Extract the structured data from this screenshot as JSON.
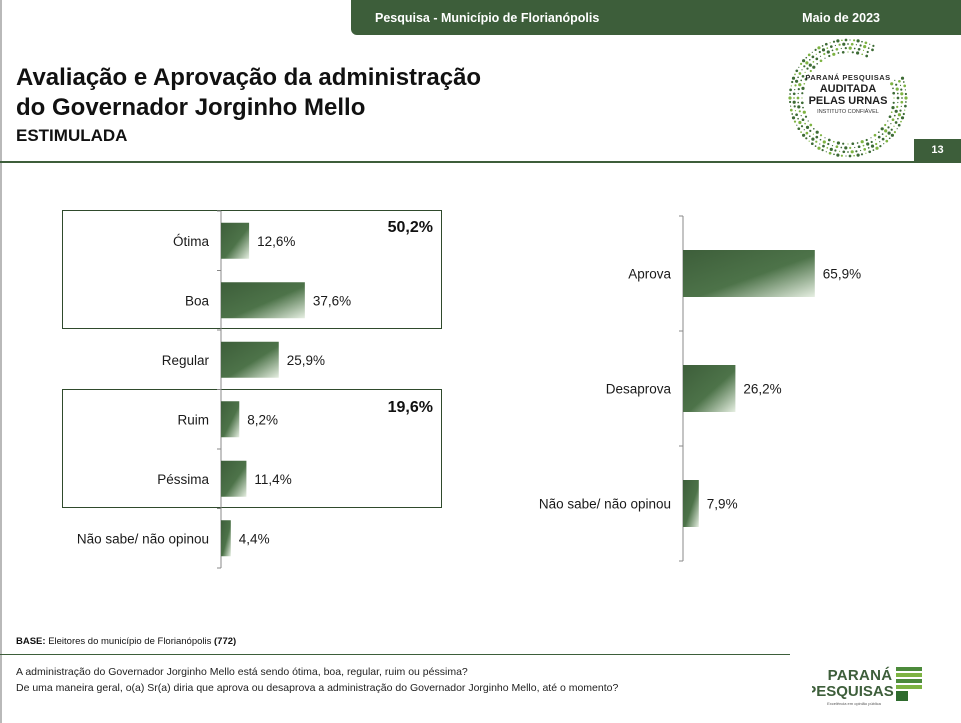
{
  "header": {
    "survey_label": "Pesquisa - Município de Florianópolis",
    "date": "Maio de 2023",
    "page_number": "13"
  },
  "title": {
    "line1": "Avaliação e Aprovação da administração",
    "line2": "do Governador Jorginho Mello",
    "subtitle": "ESTIMULADA"
  },
  "seal": {
    "line1": "PARANÁ PESQUISAS",
    "line2": "AUDITADA",
    "line3": "PELAS URNAS",
    "line4": "INSTITUTO CONFIÁVEL"
  },
  "footer": {
    "base_label": "BASE:",
    "base_text": "Eleitores do município de Florianópolis",
    "base_count": "(772)",
    "question1": "A administração do Governador Jorginho Mello está sendo ótima, boa, regular, ruim ou péssima?",
    "question2": "De uma maneira geral, o(a) Sr(a) diria que aprova ou desaprova a administração do Governador Jorginho Mello, até o momento?"
  },
  "brand": {
    "line1": "PARANÁ",
    "line2": "PESQUISAS",
    "tagline": "Excelência em opinião pública"
  },
  "colors": {
    "brand_green": "#3d5e3a",
    "bar_dark": "#3d5e3a",
    "bar_light": "#e6efe2"
  },
  "chart_data": [
    {
      "type": "bar",
      "orientation": "horizontal",
      "categories": [
        "Ótima",
        "Boa",
        "Regular",
        "Ruim",
        "Péssima",
        "Não sabe/ não opinou"
      ],
      "values": [
        12.6,
        37.6,
        25.9,
        8.2,
        11.4,
        4.4
      ],
      "value_labels": [
        "12,6%",
        "37,6%",
        "25,9%",
        "8,2%",
        "11,4%",
        "4,4%"
      ],
      "groups": [
        {
          "members": [
            "Ótima",
            "Boa"
          ],
          "total_label": "50,2%"
        },
        {
          "members": [
            "Ruim",
            "Péssima"
          ],
          "total_label": "19,6%"
        }
      ],
      "xlim": [
        0,
        100
      ],
      "grid": false,
      "legend": "none"
    },
    {
      "type": "bar",
      "orientation": "horizontal",
      "categories": [
        "Aprova",
        "Desaprova",
        "Não sabe/ não opinou"
      ],
      "values": [
        65.9,
        26.2,
        7.9
      ],
      "value_labels": [
        "65,9%",
        "26,2%",
        "7,9%"
      ],
      "xlim": [
        0,
        100
      ],
      "grid": false,
      "legend": "none"
    }
  ]
}
